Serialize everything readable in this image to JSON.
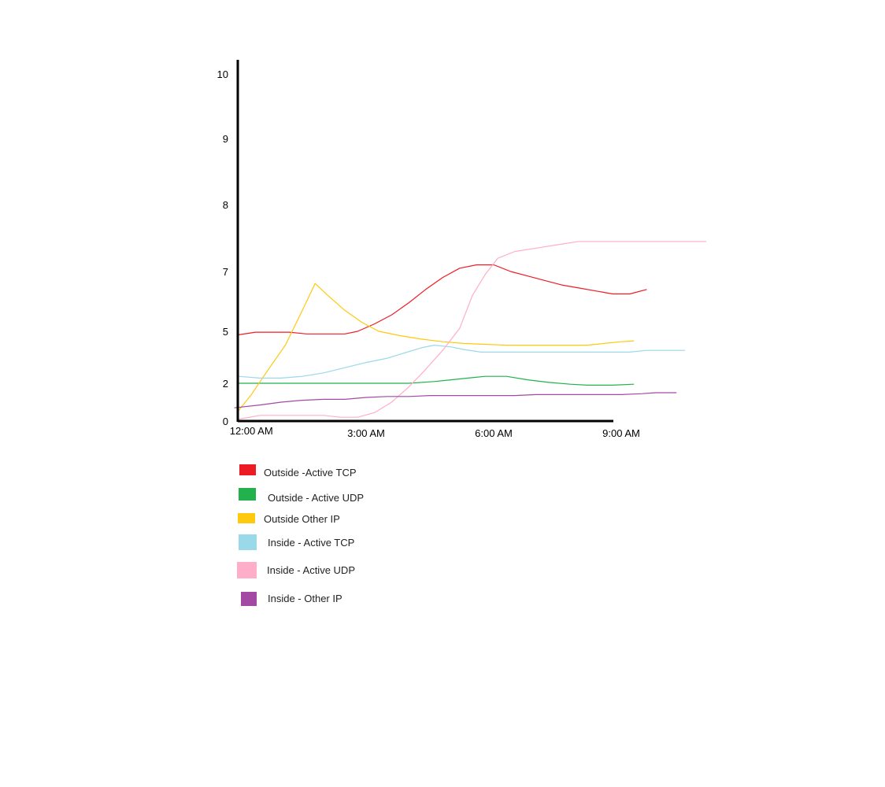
{
  "chart_data": {
    "type": "line",
    "title": "",
    "xlabel": "",
    "ylabel": "",
    "y_ticks": [
      "0",
      "2",
      "5",
      "7",
      "8",
      "9",
      "10"
    ],
    "x_ticks": [
      {
        "label": "12:00 AM",
        "hour": 0.3
      },
      {
        "label": "3:00 AM",
        "hour": 3.0
      },
      {
        "label": "6:00 AM",
        "hour": 6.0
      },
      {
        "label": "9:00 AM",
        "hour": 9.0
      }
    ],
    "grid": false,
    "legend_position": "below",
    "series": [
      {
        "name": "Outside -Active TCP",
        "color": "#ed1c24",
        "points": [
          [
            0,
            4.8
          ],
          [
            0.4,
            4.95
          ],
          [
            1.2,
            4.95
          ],
          [
            1.6,
            4.85
          ],
          [
            2.0,
            4.85
          ],
          [
            2.5,
            4.85
          ],
          [
            2.8,
            5.0
          ],
          [
            3.2,
            5.25
          ],
          [
            3.6,
            5.55
          ],
          [
            4.0,
            5.95
          ],
          [
            4.4,
            6.4
          ],
          [
            4.8,
            6.8
          ],
          [
            5.2,
            7.05
          ],
          [
            5.6,
            7.1
          ],
          [
            6.0,
            7.1
          ],
          [
            6.4,
            7.0
          ],
          [
            6.8,
            6.85
          ],
          [
            7.2,
            6.7
          ],
          [
            7.6,
            6.55
          ],
          [
            8.0,
            6.45
          ],
          [
            8.4,
            6.35
          ],
          [
            8.8,
            6.25
          ],
          [
            9.2,
            6.25
          ],
          [
            9.6,
            6.4
          ]
        ]
      },
      {
        "name": "Outside - Active UDP",
        "color": "#22b14c",
        "points": [
          [
            0,
            2.0
          ],
          [
            1.0,
            2.0
          ],
          [
            2.0,
            2.0
          ],
          [
            3.0,
            2.0
          ],
          [
            4.0,
            2.0
          ],
          [
            4.6,
            2.1
          ],
          [
            5.0,
            2.2
          ],
          [
            5.4,
            2.3
          ],
          [
            5.8,
            2.4
          ],
          [
            6.3,
            2.4
          ],
          [
            6.8,
            2.2
          ],
          [
            7.3,
            2.05
          ],
          [
            7.8,
            1.95
          ],
          [
            8.2,
            1.9
          ],
          [
            8.8,
            1.9
          ],
          [
            9.3,
            1.95
          ]
        ]
      },
      {
        "name": "Outside Other IP",
        "color": "#ffc90e",
        "points": [
          [
            0,
            0.55
          ],
          [
            0.3,
            1.4
          ],
          [
            0.7,
            2.8
          ],
          [
            1.1,
            4.2
          ],
          [
            1.5,
            5.7
          ],
          [
            1.8,
            6.6
          ],
          [
            2.1,
            6.2
          ],
          [
            2.5,
            5.7
          ],
          [
            2.9,
            5.3
          ],
          [
            3.3,
            5.0
          ],
          [
            3.8,
            4.75
          ],
          [
            4.3,
            4.55
          ],
          [
            4.8,
            4.4
          ],
          [
            5.3,
            4.3
          ],
          [
            5.8,
            4.25
          ],
          [
            6.3,
            4.2
          ],
          [
            6.8,
            4.2
          ],
          [
            7.3,
            4.2
          ],
          [
            7.8,
            4.2
          ],
          [
            8.2,
            4.2
          ],
          [
            8.6,
            4.3
          ],
          [
            9.0,
            4.4
          ],
          [
            9.3,
            4.45
          ]
        ]
      },
      {
        "name": "Inside - Active TCP",
        "color": "#99d9ea",
        "points": [
          [
            0,
            2.4
          ],
          [
            0.5,
            2.3
          ],
          [
            1.0,
            2.3
          ],
          [
            1.5,
            2.4
          ],
          [
            2.0,
            2.6
          ],
          [
            2.5,
            2.9
          ],
          [
            3.0,
            3.2
          ],
          [
            3.5,
            3.45
          ],
          [
            3.9,
            3.75
          ],
          [
            4.3,
            4.05
          ],
          [
            4.6,
            4.2
          ],
          [
            5.0,
            4.1
          ],
          [
            5.3,
            3.95
          ],
          [
            5.7,
            3.8
          ],
          [
            6.2,
            3.8
          ],
          [
            6.8,
            3.8
          ],
          [
            7.3,
            3.8
          ],
          [
            7.8,
            3.8
          ],
          [
            8.3,
            3.8
          ],
          [
            8.8,
            3.8
          ],
          [
            9.2,
            3.8
          ],
          [
            9.6,
            3.9
          ],
          [
            10.0,
            3.9
          ],
          [
            10.5,
            3.9
          ]
        ]
      },
      {
        "name": "Inside - Active UDP",
        "color": "#ffaec9",
        "points": [
          [
            0,
            0.1
          ],
          [
            0.5,
            0.3
          ],
          [
            1.0,
            0.3
          ],
          [
            1.5,
            0.3
          ],
          [
            2.0,
            0.3
          ],
          [
            2.4,
            0.2
          ],
          [
            2.8,
            0.2
          ],
          [
            3.2,
            0.45
          ],
          [
            3.6,
            1.0
          ],
          [
            4.0,
            1.8
          ],
          [
            4.4,
            2.8
          ],
          [
            4.8,
            3.9
          ],
          [
            5.2,
            5.1
          ],
          [
            5.5,
            6.2
          ],
          [
            5.8,
            6.9
          ],
          [
            6.1,
            7.2
          ],
          [
            6.5,
            7.3
          ],
          [
            7.0,
            7.35
          ],
          [
            7.5,
            7.4
          ],
          [
            8.0,
            7.45
          ],
          [
            8.5,
            7.45
          ],
          [
            9.0,
            7.45
          ],
          [
            9.5,
            7.45
          ],
          [
            10.0,
            7.45
          ],
          [
            10.5,
            7.45
          ],
          [
            11.0,
            7.45
          ]
        ]
      },
      {
        "name": "Inside - Other IP",
        "color": "#a349a4",
        "points": [
          [
            -0.1,
            0.7
          ],
          [
            0.5,
            0.85
          ],
          [
            1.0,
            1.0
          ],
          [
            1.5,
            1.1
          ],
          [
            2.0,
            1.15
          ],
          [
            2.5,
            1.15
          ],
          [
            3.0,
            1.25
          ],
          [
            3.5,
            1.3
          ],
          [
            4.0,
            1.3
          ],
          [
            4.5,
            1.35
          ],
          [
            5.0,
            1.35
          ],
          [
            5.5,
            1.35
          ],
          [
            6.0,
            1.35
          ],
          [
            6.5,
            1.35
          ],
          [
            7.0,
            1.4
          ],
          [
            7.5,
            1.4
          ],
          [
            8.0,
            1.4
          ],
          [
            8.5,
            1.4
          ],
          [
            9.0,
            1.4
          ],
          [
            9.5,
            1.45
          ],
          [
            9.8,
            1.5
          ],
          [
            10.3,
            1.5
          ]
        ]
      }
    ]
  }
}
